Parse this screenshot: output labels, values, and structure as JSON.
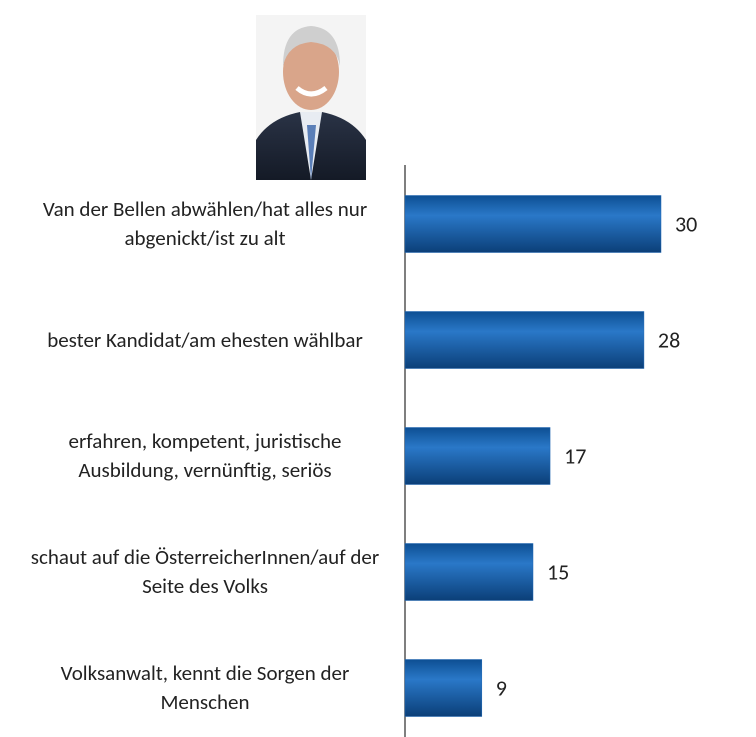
{
  "chart_data": {
    "type": "bar",
    "orientation": "horizontal",
    "categories": [
      "Van der Bellen abwählen/hat alles nur abgenickt/ist zu alt",
      "bester Kandidat/am ehesten wählbar",
      "erfahren, kompetent, juristische Ausbildung, vernünftig, seriös",
      "schaut auf die ÖsterreicherInnen/auf der Seite des Volks",
      "Volksanwalt, kennt die Sorgen der Menschen"
    ],
    "values": [
      30,
      28,
      17,
      15,
      9
    ],
    "color": "#1f66b3"
  }
}
